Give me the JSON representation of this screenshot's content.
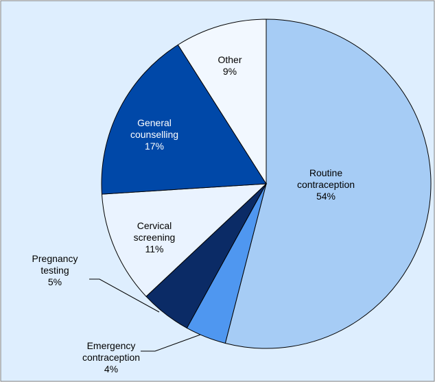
{
  "chart_data": {
    "type": "pie",
    "categories": [
      "Routine contraception",
      "Emergency contraception",
      "Pregnancy testing",
      "Cervical screening",
      "General counselling",
      "Other"
    ],
    "values": [
      54,
      4,
      5,
      11,
      17,
      9
    ],
    "value_labels": [
      "54%",
      "4%",
      "5%",
      "11%",
      "17%",
      "9%"
    ],
    "colors": [
      "#a6ccf5",
      "#4f97f0",
      "#0b2b66",
      "#eaf3ff",
      "#0048a8",
      "#f2f8ff"
    ]
  }
}
